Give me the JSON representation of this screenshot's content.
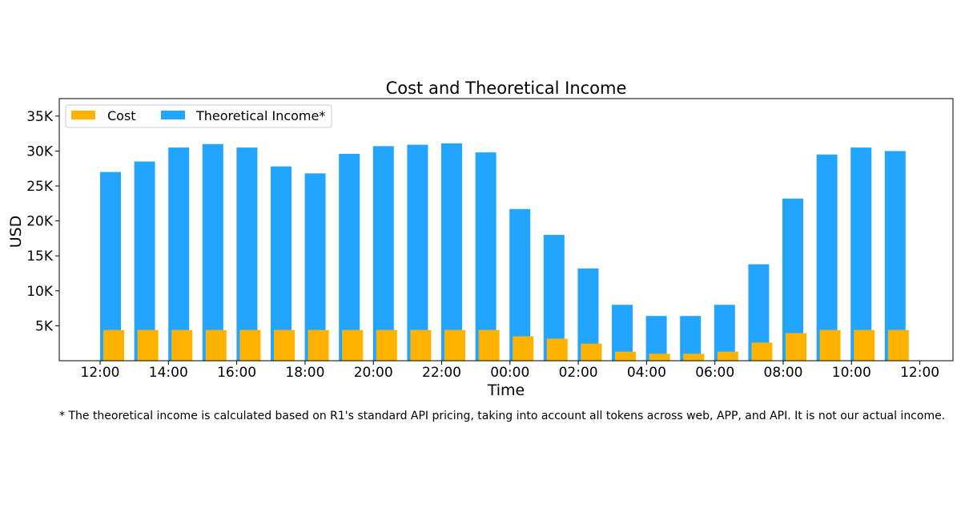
{
  "chart_data": {
    "type": "bar",
    "title": "Cost and Theoretical Income",
    "xlabel": "Time",
    "ylabel": "USD",
    "ylim": [
      0,
      37500
    ],
    "yticks": [
      5000,
      10000,
      15000,
      20000,
      25000,
      30000,
      35000
    ],
    "ytick_labels": [
      "5K",
      "10K",
      "15K",
      "20K",
      "25K",
      "30K",
      "35K"
    ],
    "xtick_labels": [
      "12:00",
      "14:00",
      "16:00",
      "18:00",
      "20:00",
      "22:00",
      "00:00",
      "02:00",
      "04:00",
      "06:00",
      "08:00",
      "10:00",
      "12:00"
    ],
    "legend_position": "top-left",
    "series": [
      {
        "name": "Cost",
        "color": "#FFB300",
        "values": [
          4400,
          4400,
          4400,
          4400,
          4400,
          4400,
          4400,
          4400,
          4400,
          4400,
          4400,
          4400,
          3500,
          3150,
          2450,
          1300,
          1000,
          1000,
          1300,
          2600,
          3950,
          4400,
          4400,
          4400
        ]
      },
      {
        "name": "Theoretical Income*",
        "color": "#22A5FF",
        "values": [
          27000,
          28500,
          30500,
          31000,
          30500,
          27800,
          26800,
          29600,
          30700,
          30900,
          31100,
          29800,
          21700,
          18000,
          13200,
          8000,
          6400,
          6400,
          8000,
          13800,
          23200,
          29500,
          30500,
          30000
        ]
      }
    ]
  },
  "footnote": "* The theoretical income is calculated based on R1's standard API pricing, taking into account all tokens across web, APP, and API. It is not our actual income."
}
